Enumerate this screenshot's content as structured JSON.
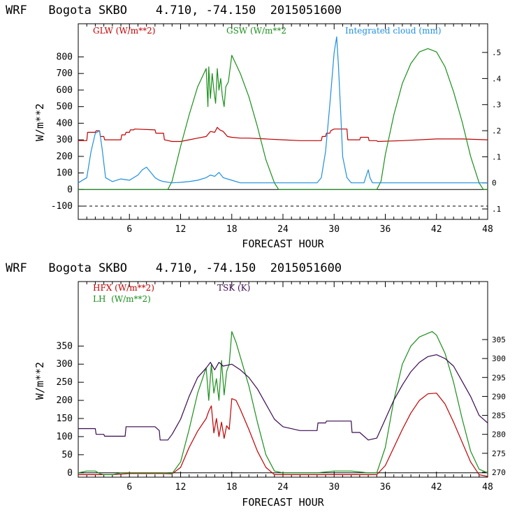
{
  "chart_data": [
    {
      "type": "line",
      "title": "WRF   Bogota SKBO    4.710, -74.150  2015051600",
      "xlabel": "FORECAST HOUR",
      "ylabel": "W/m**2",
      "xlim": [
        0,
        48
      ],
      "ylim": [
        -180,
        1000
      ],
      "x_ticks": [
        6,
        12,
        18,
        24,
        30,
        36,
        42,
        48
      ],
      "y_ticks": [
        -100,
        0,
        100,
        200,
        300,
        400,
        500,
        600,
        700,
        800
      ],
      "y2lim": [
        -0.14,
        0.61
      ],
      "y2_ticks": [
        -0.1,
        0,
        0.1,
        0.2,
        0.3,
        0.4,
        0.5
      ],
      "y2_tick_labels": [
        ".1",
        "0",
        ".1",
        ".2",
        ".3",
        ".4",
        ".5"
      ],
      "series": [
        {
          "name": "GLW (W/m**2)",
          "color": "#c00000",
          "axis": "left",
          "x": [
            0,
            1,
            1.1,
            2,
            2.1,
            2.5,
            2.6,
            3,
            3.1,
            4,
            4.1,
            5,
            5.1,
            5.5,
            5.6,
            6,
            6.1,
            6.5,
            6.6,
            9,
            9.1,
            10,
            10.1,
            11,
            12,
            13,
            14,
            15,
            15.5,
            16,
            16.3,
            16.6,
            17,
            17.5,
            18,
            19,
            20,
            22,
            24,
            26,
            28,
            28.5,
            28.6,
            29,
            29.1,
            29.5,
            29.6,
            30,
            31,
            31.5,
            31.6,
            33,
            33.1,
            34,
            34.1,
            35,
            35.1,
            38,
            42,
            45,
            48
          ],
          "values": [
            295,
            295,
            345,
            345,
            355,
            355,
            320,
            320,
            300,
            300,
            300,
            300,
            330,
            330,
            345,
            345,
            360,
            360,
            365,
            360,
            340,
            340,
            300,
            290,
            290,
            300,
            310,
            320,
            350,
            345,
            375,
            360,
            350,
            320,
            315,
            310,
            310,
            305,
            300,
            295,
            295,
            295,
            320,
            320,
            340,
            340,
            355,
            365,
            365,
            365,
            300,
            300,
            315,
            315,
            295,
            295,
            290,
            295,
            305,
            305,
            300
          ]
        },
        {
          "name": "GSW (W/m**2",
          "color": "#1a8f1a",
          "axis": "left",
          "x": [
            0,
            10.5,
            11,
            12,
            13,
            14,
            15,
            15.2,
            15.3,
            15.5,
            15.7,
            15.9,
            16.1,
            16.3,
            16.5,
            16.7,
            16.9,
            17.1,
            17.3,
            17.6,
            18,
            19,
            20,
            21,
            22,
            23,
            23.5,
            24,
            35,
            35.5,
            36,
            37,
            38,
            39,
            40,
            41,
            42,
            43,
            44,
            45,
            46,
            47,
            47.5,
            48
          ],
          "values": [
            0,
            0,
            50,
            260,
            450,
            620,
            730,
            500,
            740,
            550,
            700,
            600,
            520,
            730,
            600,
            670,
            560,
            500,
            620,
            650,
            810,
            700,
            560,
            380,
            180,
            40,
            0,
            0,
            0,
            50,
            210,
            450,
            640,
            760,
            830,
            850,
            830,
            740,
            590,
            410,
            200,
            40,
            0,
            0
          ]
        },
        {
          "name": "Integrated cloud (mm)",
          "color": "#1f8fe0",
          "axis": "right",
          "x": [
            0,
            1,
            1.5,
            2,
            2.5,
            2.8,
            3.2,
            4,
            5,
            6,
            7,
            7.5,
            8,
            8.5,
            9,
            9.5,
            10,
            11,
            12,
            13,
            14,
            15,
            15.5,
            16,
            16.5,
            17,
            18,
            19,
            28,
            28.5,
            29,
            29.5,
            30,
            30.3,
            30.5,
            30.8,
            31,
            31.5,
            32,
            33.5,
            33.8,
            34,
            34.2,
            34.5,
            48
          ],
          "values": [
            0,
            0.02,
            0.12,
            0.19,
            0.2,
            0.13,
            0.02,
            0.005,
            0.015,
            0.01,
            0.03,
            0.05,
            0.06,
            0.04,
            0.02,
            0.01,
            0.005,
            0,
            0.002,
            0.005,
            0.01,
            0.02,
            0.03,
            0.025,
            0.04,
            0.02,
            0.01,
            0,
            0,
            0.02,
            0.12,
            0.3,
            0.5,
            0.56,
            0.45,
            0.25,
            0.1,
            0.02,
            0,
            0,
            0.03,
            0.05,
            0.02,
            0,
            0
          ]
        }
      ]
    },
    {
      "type": "line",
      "title": "WRF   Bogota SKBO    4.710, -74.150  2015051600",
      "xlabel": "FORECAST HOUR",
      "ylabel": "W/m**2",
      "xlim": [
        0,
        48
      ],
      "ylim": [
        -12,
        528
      ],
      "x_ticks": [
        6,
        12,
        18,
        24,
        30,
        36,
        42,
        48
      ],
      "y_ticks": [
        0,
        50,
        100,
        150,
        200,
        250,
        300,
        350
      ],
      "y2lim": [
        268.7,
        320.3
      ],
      "y2_ticks": [
        270,
        275,
        280,
        285,
        290,
        295,
        300,
        305
      ],
      "series": [
        {
          "name": "HFX (W/m**2)",
          "color": "#c00000",
          "axis": "left",
          "x": [
            0,
            2,
            4,
            6,
            8,
            10,
            11,
            12,
            13,
            14,
            15,
            15.3,
            15.6,
            15.9,
            16.2,
            16.5,
            16.8,
            17.1,
            17.4,
            17.7,
            18,
            18.5,
            19,
            20,
            21,
            22,
            23,
            24,
            26,
            28,
            30,
            32,
            34,
            35,
            36,
            37,
            38,
            39,
            40,
            41,
            42,
            43,
            44,
            45,
            46,
            47,
            48
          ],
          "values": [
            -5,
            -5,
            -5,
            -2,
            -2,
            -2,
            -3,
            15,
            70,
            115,
            150,
            170,
            185,
            110,
            150,
            100,
            140,
            95,
            130,
            120,
            205,
            200,
            175,
            120,
            60,
            15,
            -5,
            -5,
            -5,
            -5,
            -5,
            -5,
            -5,
            -5,
            20,
            70,
            120,
            165,
            200,
            218,
            220,
            190,
            140,
            85,
            30,
            -5,
            -10
          ]
        },
        {
          "name": "LH  (W/m**2)",
          "color": "#1a8f1a",
          "axis": "left",
          "x": [
            0,
            1,
            2,
            2.5,
            3,
            4,
            5,
            6,
            8,
            10,
            11,
            12,
            13,
            14,
            15,
            15.3,
            15.6,
            15.9,
            16.2,
            16.5,
            16.8,
            17.1,
            17.4,
            17.7,
            18,
            18.5,
            19,
            20,
            21,
            22,
            23,
            24,
            26,
            28,
            30,
            32,
            34,
            35,
            36,
            37,
            38,
            39,
            40,
            41,
            41.5,
            42,
            43,
            44,
            45,
            46,
            47,
            48
          ],
          "values": [
            0,
            5,
            5,
            -2,
            -5,
            -5,
            0,
            0,
            0,
            0,
            -2,
            30,
            120,
            220,
            290,
            200,
            300,
            220,
            260,
            200,
            310,
            215,
            280,
            300,
            390,
            360,
            320,
            240,
            140,
            50,
            5,
            0,
            0,
            0,
            5,
            5,
            0,
            0,
            70,
            200,
            300,
            350,
            375,
            385,
            390,
            380,
            330,
            250,
            150,
            60,
            10,
            0
          ]
        },
        {
          "name": "TSK (K)",
          "color": "#3a0a50",
          "axis": "right",
          "x": [
            0,
            1,
            1.1,
            2,
            2.1,
            3,
            3.1,
            5.5,
            5.6,
            9,
            9.5,
            9.6,
            10.5,
            11,
            12,
            13,
            14,
            15,
            15.5,
            16,
            16.5,
            17,
            18,
            19,
            20,
            21,
            22,
            23,
            24,
            26,
            28,
            28.1,
            29,
            29.1,
            32,
            32.1,
            33,
            34,
            35,
            36,
            37,
            38,
            39,
            40,
            41,
            42,
            43,
            44,
            45,
            46,
            47,
            48
          ],
          "values": [
            281.5,
            281.5,
            281.5,
            281.5,
            280,
            280,
            279.5,
            279.5,
            282,
            282,
            281,
            278.5,
            278.5,
            280,
            284,
            290,
            295,
            297.5,
            299,
            297,
            299,
            298,
            298.5,
            297,
            295,
            292,
            288,
            284,
            282,
            281,
            281,
            283,
            283,
            283.5,
            283.5,
            280.5,
            280.5,
            278.5,
            279,
            284,
            289,
            293,
            296.5,
            299,
            300.5,
            301,
            300,
            298,
            294,
            290,
            285,
            283
          ]
        }
      ]
    }
  ]
}
